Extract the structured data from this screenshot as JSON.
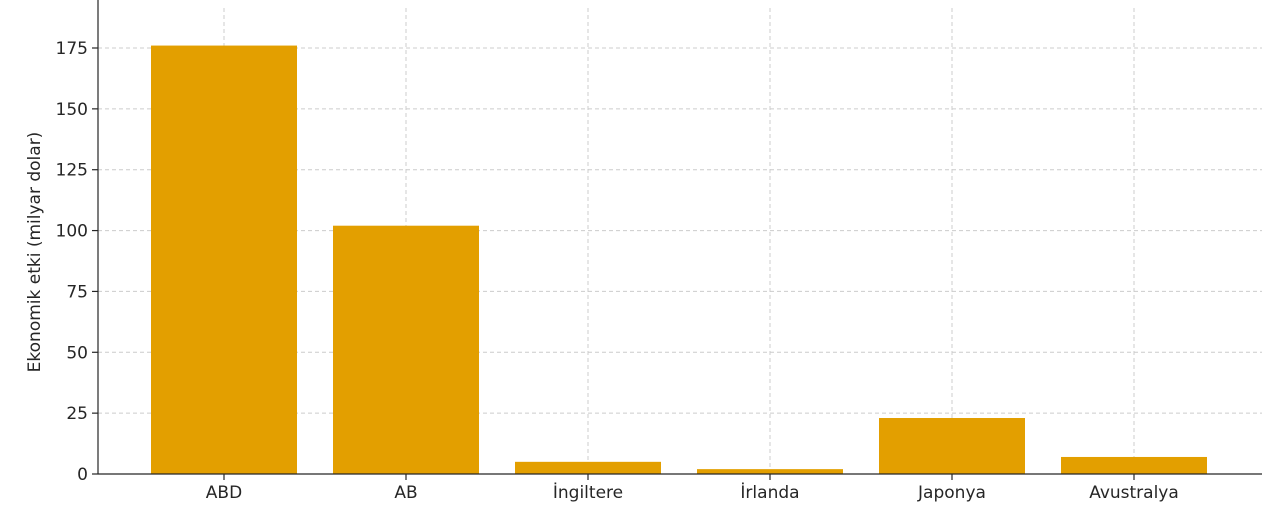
{
  "chart_data": {
    "type": "bar",
    "title": "",
    "xlabel": "",
    "ylabel": "Ekonomik etki (milyar dolar)",
    "categories": [
      "ABD",
      "AB",
      "İngiltere",
      "İrlanda",
      "Japonya",
      "Avustralya"
    ],
    "values": [
      176,
      102,
      5,
      2,
      23,
      7
    ],
    "ylim": [
      0,
      185
    ],
    "yticks": [
      0,
      25,
      50,
      75,
      100,
      125,
      150,
      175
    ],
    "ytick_labels": [
      "0",
      "25",
      "50",
      "75",
      "100",
      "125",
      "150",
      "175"
    ],
    "grid": true,
    "bar_color": "#e39f00"
  }
}
